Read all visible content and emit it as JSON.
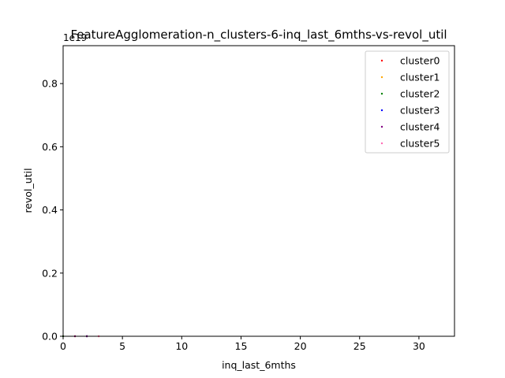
{
  "chart_data": {
    "type": "scatter",
    "title": "FeatureAgglomeration-n_clusters-6-inq_last_6mths-vs-revol_util",
    "xlabel": "inq_last_6mths",
    "ylabel": "revol_util",
    "xlim": [
      0,
      33
    ],
    "ylim": [
      0,
      0.92
    ],
    "y_offset_label": "1e19",
    "x_ticks": [
      0,
      5,
      10,
      15,
      20,
      25,
      30
    ],
    "x_tick_labels": [
      "0",
      "5",
      "10",
      "15",
      "20",
      "25",
      "30"
    ],
    "y_ticks": [
      0.0,
      0.2,
      0.4,
      0.6,
      0.8
    ],
    "y_tick_labels": [
      "0.0",
      "0.2",
      "0.4",
      "0.6",
      "0.8"
    ],
    "grid": false,
    "legend_position": "top-right",
    "series": [
      {
        "name": "cluster0",
        "color": "#ff0000",
        "points": [
          [
            0,
            0.0
          ],
          [
            1,
            0.0
          ],
          [
            2,
            0.0
          ]
        ]
      },
      {
        "name": "cluster1",
        "color": "#ffa500",
        "points": [
          [
            1,
            0.0
          ],
          [
            3,
            0.0
          ]
        ]
      },
      {
        "name": "cluster2",
        "color": "#008000",
        "points": [
          [
            0,
            0.0
          ],
          [
            2,
            0.0
          ]
        ]
      },
      {
        "name": "cluster3",
        "color": "#0000ff",
        "points": [
          [
            2,
            0.0
          ]
        ]
      },
      {
        "name": "cluster4",
        "color": "#800080",
        "points": [
          [
            1,
            0.0
          ],
          [
            2,
            0.0
          ]
        ]
      },
      {
        "name": "cluster5",
        "color": "#ff69b4",
        "points": [
          [
            3,
            0.0
          ]
        ]
      }
    ]
  }
}
